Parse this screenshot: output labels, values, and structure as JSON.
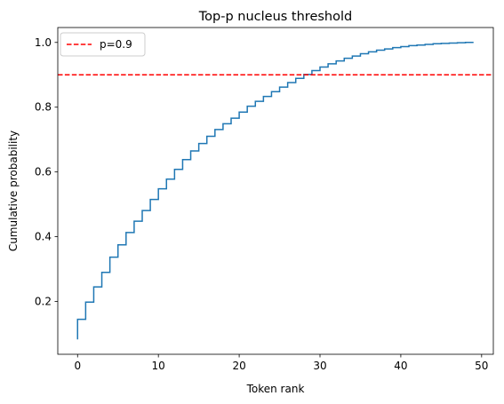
{
  "chart_data": {
    "type": "line",
    "title": "Top-p nucleus threshold",
    "xlabel": "Token rank",
    "ylabel": "Cumulative probability",
    "xlim": [
      -2.45,
      51.45
    ],
    "ylim": [
      0.037,
      1.046
    ],
    "xticks": [
      0,
      10,
      20,
      30,
      40,
      50
    ],
    "xtick_labels": [
      "0",
      "10",
      "20",
      "30",
      "40",
      "50"
    ],
    "yticks": [
      0.2,
      0.4,
      0.6,
      0.8,
      1.0
    ],
    "ytick_labels": [
      "0.2",
      "0.4",
      "0.6",
      "0.8",
      "1.0"
    ],
    "grid": false,
    "legend_placement": "top-left",
    "series": [
      {
        "kind": "step",
        "color": "#1f77b4",
        "x": [
          0,
          1,
          2,
          3,
          4,
          5,
          6,
          7,
          8,
          9,
          10,
          11,
          12,
          13,
          14,
          15,
          16,
          17,
          18,
          19,
          20,
          21,
          22,
          23,
          24,
          25,
          26,
          27,
          28,
          29,
          30,
          31,
          32,
          33,
          34,
          35,
          36,
          37,
          38,
          39,
          40,
          41,
          42,
          43,
          44,
          45,
          46,
          47,
          48,
          49
        ],
        "y": [
          0.083,
          0.145,
          0.198,
          0.245,
          0.29,
          0.337,
          0.375,
          0.413,
          0.448,
          0.481,
          0.515,
          0.548,
          0.578,
          0.608,
          0.638,
          0.665,
          0.688,
          0.71,
          0.731,
          0.749,
          0.766,
          0.785,
          0.803,
          0.818,
          0.833,
          0.848,
          0.862,
          0.876,
          0.889,
          0.901,
          0.913,
          0.924,
          0.934,
          0.943,
          0.951,
          0.958,
          0.965,
          0.971,
          0.976,
          0.98,
          0.984,
          0.987,
          0.99,
          0.992,
          0.994,
          0.996,
          0.997,
          0.998,
          0.999,
          1.0
        ]
      },
      {
        "name": "p=0.9",
        "kind": "hline",
        "y": 0.9,
        "color": "#ff0000",
        "linestyle": "dashed"
      }
    ]
  }
}
